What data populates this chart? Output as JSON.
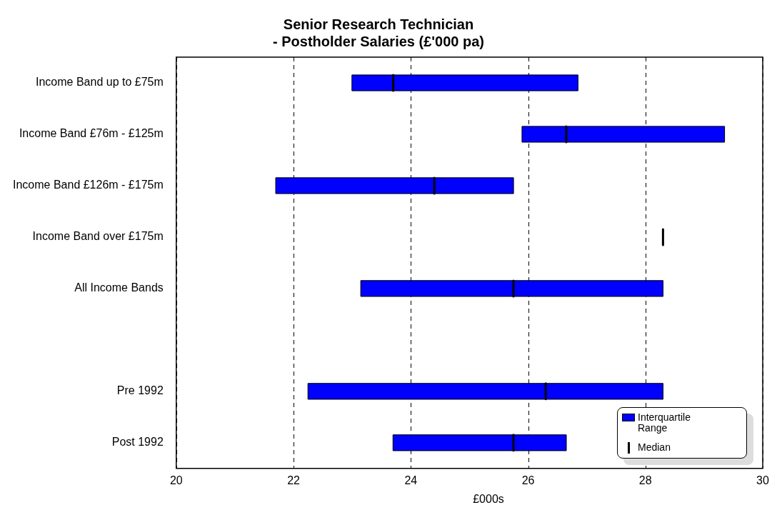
{
  "chart_data": {
    "type": "box",
    "orientation": "horizontal",
    "title": "Senior Research Technician\n- Postholder Salaries (£'000 pa)",
    "xlabel": "£000s",
    "categories": [
      "Income Band up to £75m",
      "Income Band £76m - £125m",
      "Income Band £126m - £175m",
      "Income Band over £175m",
      "All Income Bands",
      null,
      "Pre 1992",
      "Post 1992"
    ],
    "series": [
      {
        "name": "Interquartile Range",
        "color": "#0000ff",
        "boxes": [
          {
            "low": 23.0,
            "q1": 23.0,
            "median": 23.7,
            "q3": 26.85,
            "high": 26.85
          },
          {
            "low": 25.9,
            "q1": 25.9,
            "median": 26.65,
            "q3": 29.35,
            "high": 29.35
          },
          {
            "low": 21.7,
            "q1": 21.7,
            "median": 24.4,
            "q3": 25.75,
            "high": 25.75
          },
          {
            "low": 28.3,
            "q1": 28.3,
            "median": 28.3,
            "q3": 28.3,
            "high": 28.3
          },
          {
            "low": 23.15,
            "q1": 23.15,
            "median": 25.75,
            "q3": 28.3,
            "high": 28.3
          },
          null,
          {
            "low": 22.25,
            "q1": 22.25,
            "median": 26.3,
            "q3": 28.3,
            "high": 28.3
          },
          {
            "low": 23.7,
            "q1": 23.7,
            "median": 25.75,
            "q3": 26.65,
            "high": 26.65
          }
        ]
      }
    ],
    "annotations": [
      "Median"
    ],
    "xlim": [
      20,
      30
    ],
    "xticks": [
      20,
      22,
      24,
      26,
      28,
      30
    ],
    "grid": "x",
    "legend": "bottom right"
  }
}
